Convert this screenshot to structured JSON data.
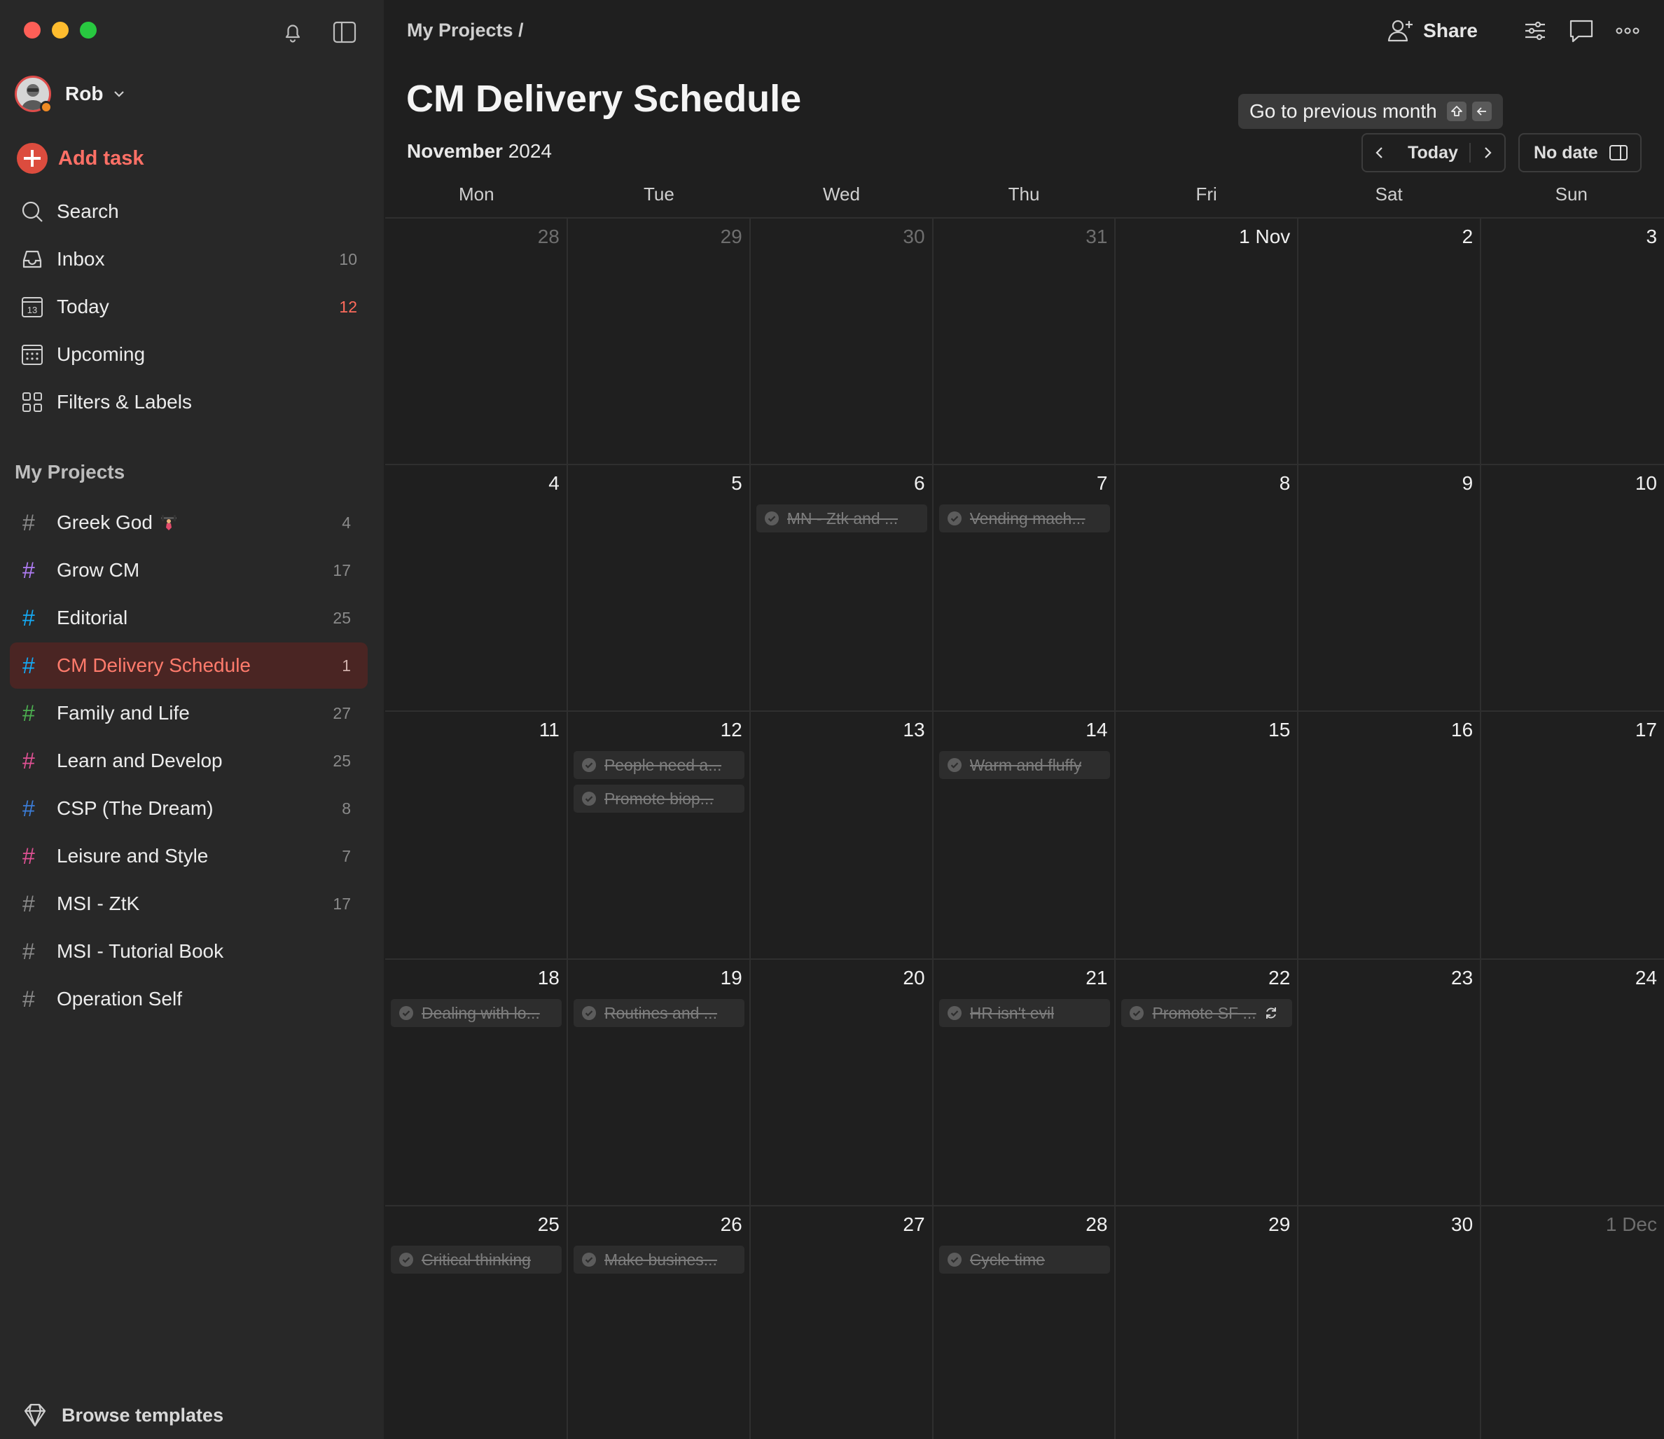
{
  "sidebar": {
    "user": {
      "name": "Rob"
    },
    "add_task": "Add task",
    "nav": [
      {
        "label": "Search",
        "icon": "search-icon",
        "count": ""
      },
      {
        "label": "Inbox",
        "icon": "inbox-icon",
        "count": "10"
      },
      {
        "label": "Today",
        "icon": "calendar-today-icon",
        "count": "12"
      },
      {
        "label": "Upcoming",
        "icon": "calendar-upcoming-icon",
        "count": ""
      },
      {
        "label": "Filters & Labels",
        "icon": "grid-icon",
        "count": ""
      }
    ],
    "projects_title": "My Projects",
    "projects": [
      {
        "name": "Greek God",
        "count": "4",
        "color": "#8a8a8a",
        "emoji": "weightlifter-icon"
      },
      {
        "name": "Grow CM",
        "count": "17",
        "color": "#b07cf5"
      },
      {
        "name": "Editorial",
        "count": "25",
        "color": "#14aaf5"
      },
      {
        "name": "CM Delivery Schedule",
        "count": "1",
        "color": "#14aaf5",
        "active": true
      },
      {
        "name": "Family and Life",
        "count": "27",
        "color": "#4caf50"
      },
      {
        "name": "Learn and Develop",
        "count": "25",
        "color": "#e05194"
      },
      {
        "name": "CSP (The Dream)",
        "count": "8",
        "color": "#3b7dd8"
      },
      {
        "name": "Leisure and Style",
        "count": "7",
        "color": "#e05194"
      },
      {
        "name": "MSI - ZtK",
        "count": "17",
        "color": "#8a8a8a"
      },
      {
        "name": "MSI - Tutorial Book",
        "count": "",
        "color": "#8a8a8a"
      },
      {
        "name": "Operation Self",
        "count": "",
        "color": "#8a8a8a"
      }
    ],
    "browse_templates": "Browse templates"
  },
  "header": {
    "breadcrumb": "My Projects /",
    "share_label": "Share",
    "title": "CM Delivery Schedule",
    "month_bold": "November",
    "year": "2024",
    "tooltip": "Go to previous month",
    "today_label": "Today",
    "no_date_label": "No date"
  },
  "calendar": {
    "weekdays": [
      "Mon",
      "Tue",
      "Wed",
      "Thu",
      "Fri",
      "Sat",
      "Sun"
    ],
    "weeks": [
      [
        {
          "day": "28",
          "dim": true,
          "tasks": []
        },
        {
          "day": "29",
          "dim": true,
          "tasks": []
        },
        {
          "day": "30",
          "dim": true,
          "tasks": []
        },
        {
          "day": "31",
          "dim": true,
          "tasks": []
        },
        {
          "day": "1 Nov",
          "tasks": []
        },
        {
          "day": "2",
          "tasks": []
        },
        {
          "day": "3",
          "tasks": []
        }
      ],
      [
        {
          "day": "4",
          "tasks": []
        },
        {
          "day": "5",
          "tasks": []
        },
        {
          "day": "6",
          "tasks": [
            {
              "title": "MN - Ztk and ..."
            }
          ]
        },
        {
          "day": "7",
          "tasks": [
            {
              "title": "Vending mach..."
            }
          ]
        },
        {
          "day": "8",
          "tasks": []
        },
        {
          "day": "9",
          "tasks": []
        },
        {
          "day": "10",
          "tasks": []
        }
      ],
      [
        {
          "day": "11",
          "tasks": []
        },
        {
          "day": "12",
          "tasks": [
            {
              "title": "People need a..."
            },
            {
              "title": "Promote biop..."
            }
          ]
        },
        {
          "day": "13",
          "tasks": []
        },
        {
          "day": "14",
          "tasks": [
            {
              "title": "Warm and fluffy"
            }
          ]
        },
        {
          "day": "15",
          "tasks": []
        },
        {
          "day": "16",
          "tasks": []
        },
        {
          "day": "17",
          "tasks": []
        }
      ],
      [
        {
          "day": "18",
          "tasks": [
            {
              "title": "Dealing with lo..."
            }
          ]
        },
        {
          "day": "19",
          "tasks": [
            {
              "title": "Routines and ..."
            }
          ]
        },
        {
          "day": "20",
          "tasks": []
        },
        {
          "day": "21",
          "tasks": [
            {
              "title": "HR isn't evil"
            }
          ]
        },
        {
          "day": "22",
          "tasks": [
            {
              "title": "Promote SF ...",
              "recurring": true
            }
          ]
        },
        {
          "day": "23",
          "tasks": []
        },
        {
          "day": "24",
          "tasks": []
        }
      ],
      [
        {
          "day": "25",
          "tasks": [
            {
              "title": "Critical thinking"
            }
          ]
        },
        {
          "day": "26",
          "tasks": [
            {
              "title": "Make busines..."
            }
          ]
        },
        {
          "day": "27",
          "tasks": []
        },
        {
          "day": "28",
          "tasks": [
            {
              "title": "Cycle time"
            }
          ]
        },
        {
          "day": "29",
          "tasks": []
        },
        {
          "day": "30",
          "tasks": []
        },
        {
          "day": "1 Dec",
          "dim": true,
          "tasks": []
        }
      ]
    ]
  }
}
